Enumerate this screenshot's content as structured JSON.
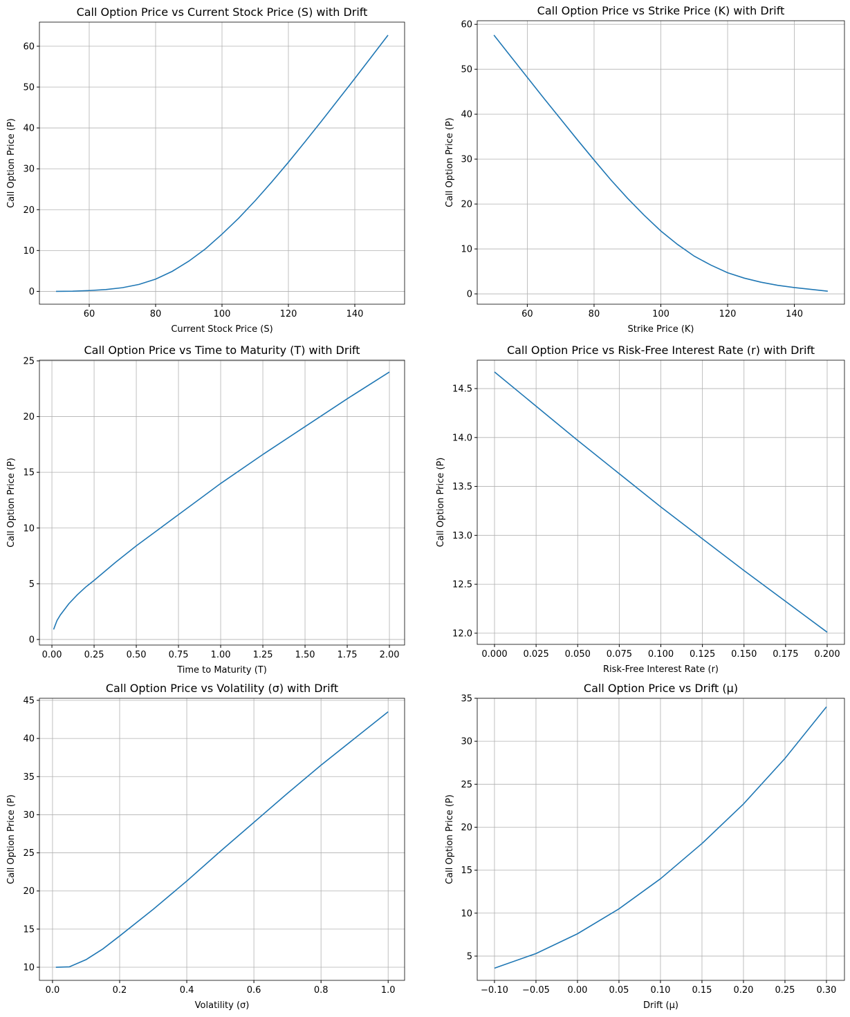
{
  "chart_data": [
    {
      "type": "line",
      "title": "Call Option Price vs Current Stock Price (S) with Drift",
      "x_label": "Current Stock Price (S)",
      "y_label": "Call Option Price (P)",
      "x": [
        50,
        55,
        60,
        65,
        70,
        75,
        80,
        85,
        90,
        95,
        100,
        105,
        110,
        115,
        120,
        125,
        130,
        135,
        140,
        145,
        150
      ],
      "series": [
        {
          "color": "#1f77b4",
          "values": [
            0.0,
            0.05,
            0.2,
            0.45,
            0.9,
            1.7,
            3.0,
            4.9,
            7.4,
            10.4,
            14.0,
            17.9,
            22.2,
            26.8,
            31.6,
            36.6,
            41.7,
            46.9,
            52.1,
            57.4,
            62.7
          ]
        }
      ],
      "xlim": [
        45,
        155
      ],
      "ylim": [
        -3.14,
        65.9
      ],
      "xticks": [
        60,
        80,
        100,
        120,
        140
      ],
      "yticks": [
        0,
        10,
        20,
        30,
        40,
        50,
        60
      ],
      "grid": true
    },
    {
      "type": "line",
      "title": "Call Option Price vs Strike Price (K) with Drift",
      "x_label": "Strike Price (K)",
      "y_label": "Call Option Price (P)",
      "x": [
        50,
        55,
        60,
        65,
        70,
        75,
        80,
        85,
        90,
        95,
        100,
        105,
        110,
        115,
        120,
        125,
        130,
        135,
        140,
        145,
        150
      ],
      "series": [
        {
          "color": "#1f77b4",
          "values": [
            57.6,
            52.9,
            48.2,
            43.5,
            38.9,
            34.3,
            29.8,
            25.4,
            21.3,
            17.5,
            14.0,
            11.0,
            8.4,
            6.4,
            4.7,
            3.5,
            2.6,
            1.9,
            1.4,
            1.0,
            0.6
          ]
        }
      ],
      "xlim": [
        45,
        155
      ],
      "ylim": [
        -2.3,
        60.8
      ],
      "xticks": [
        60,
        80,
        100,
        120,
        140
      ],
      "yticks": [
        0,
        10,
        20,
        30,
        40,
        50,
        60
      ],
      "grid": true
    },
    {
      "type": "line",
      "title": "Call Option Price vs Time to Maturity (T) with Drift",
      "x_label": "Time to Maturity (T)",
      "y_label": "Call Option Price (P)",
      "x": [
        0.01,
        0.03,
        0.05,
        0.1,
        0.15,
        0.2,
        0.25,
        0.375,
        0.5,
        0.625,
        0.75,
        0.875,
        1.0,
        1.25,
        1.5,
        1.75,
        2.0
      ],
      "series": [
        {
          "color": "#1f77b4",
          "values": [
            0.9,
            1.7,
            2.2,
            3.2,
            4.0,
            4.7,
            5.3,
            6.9,
            8.4,
            9.8,
            11.2,
            12.6,
            14.0,
            16.6,
            19.1,
            21.6,
            24.0
          ]
        }
      ],
      "xlim": [
        -0.074,
        2.09
      ],
      "ylim": [
        -0.5,
        25.06
      ],
      "xticks": [
        {
          "value": 0,
          "label": "0.00"
        },
        0.25,
        {
          "value": 0.5,
          "label": "0.50"
        },
        0.75,
        {
          "value": 1,
          "label": "1.00"
        },
        1.25,
        {
          "value": 1.5,
          "label": "1.50"
        },
        1.75,
        {
          "value": 2,
          "label": "2.00"
        }
      ],
      "yticks": [
        0,
        5,
        10,
        15,
        20,
        25
      ],
      "grid": true
    },
    {
      "type": "line",
      "title": "Call Option Price vs Risk-Free Interest Rate (r) with Drift",
      "x_label": "Risk-Free Interest Rate (r)",
      "y_label": "Call Option Price (P)",
      "x": [
        0,
        0.05,
        0.1,
        0.15,
        0.2
      ],
      "series": [
        {
          "color": "#1f77b4",
          "values": [
            14.67,
            13.97,
            13.29,
            12.64,
            12.01
          ]
        }
      ],
      "xlim": [
        -0.0104,
        0.2104
      ],
      "ylim": [
        11.886,
        14.79
      ],
      "xticks": [
        {
          "value": 0,
          "label": "0.000"
        },
        0.025,
        {
          "value": 0.05,
          "label": "0.050"
        },
        0.075,
        {
          "value": 0.1,
          "label": "0.100"
        },
        0.125,
        {
          "value": 0.15,
          "label": "0.150"
        },
        0.175,
        {
          "value": 0.2,
          "label": "0.200"
        }
      ],
      "yticks": [
        {
          "value": 12,
          "label": "12.0"
        },
        12.5,
        {
          "value": 13,
          "label": "13.0"
        },
        13.5,
        {
          "value": 14,
          "label": "14.0"
        },
        14.5
      ],
      "grid": true
    },
    {
      "type": "line",
      "title": "Call Option Price vs Volatility (σ) with Drift",
      "x_label": "Volatility (σ)",
      "y_label": "Call Option Price (P)",
      "x": [
        0.01,
        0.05,
        0.1,
        0.15,
        0.2,
        0.3,
        0.4,
        0.5,
        0.6,
        0.7,
        0.8,
        0.9,
        1.0
      ],
      "series": [
        {
          "color": "#1f77b4",
          "values": [
            10.0,
            10.05,
            11.0,
            12.4,
            14.1,
            17.6,
            21.3,
            25.2,
            29.0,
            32.8,
            36.5,
            40.0,
            43.5
          ]
        }
      ],
      "xlim": [
        -0.039,
        1.049
      ],
      "ylim": [
        8.28,
        45.27
      ],
      "xticks": [
        {
          "value": 0,
          "label": "0.0"
        },
        0.2,
        0.4,
        0.6,
        0.8,
        {
          "value": 1,
          "label": "1.0"
        }
      ],
      "yticks": [
        10,
        15,
        20,
        25,
        30,
        35,
        40,
        45
      ],
      "grid": true
    },
    {
      "type": "line",
      "title": "Call Option Price vs Drift (μ)",
      "x_label": "Drift (μ)",
      "y_label": "Call Option Price (P)",
      "x": [
        -0.1,
        -0.05,
        0,
        0.05,
        0.1,
        0.15,
        0.2,
        0.25,
        0.3
      ],
      "series": [
        {
          "color": "#1f77b4",
          "values": [
            3.6,
            5.3,
            7.6,
            10.5,
            14.0,
            18.1,
            22.7,
            28.0,
            34.0
          ]
        }
      ],
      "xlim": [
        -0.1208,
        0.3217
      ],
      "ylim": [
        2.18,
        35.0
      ],
      "xticks": [
        {
          "value": -0.1,
          "label": "−0.10"
        },
        {
          "value": -0.05,
          "label": "−0.05"
        },
        {
          "value": 0,
          "label": "0.00"
        },
        0.05,
        {
          "value": 0.1,
          "label": "0.10"
        },
        0.15,
        {
          "value": 0.2,
          "label": "0.20"
        },
        0.25,
        {
          "value": 0.3,
          "label": "0.30"
        }
      ],
      "yticks": [
        5,
        10,
        15,
        20,
        25,
        30,
        35
      ],
      "grid": true
    }
  ]
}
